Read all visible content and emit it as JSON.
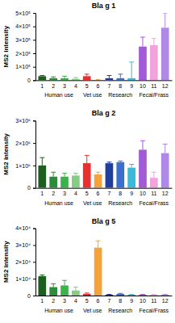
{
  "chart_data": [
    {
      "type": "bar",
      "title": "Bla g 1",
      "y_label": "MS2 intensity",
      "categories": [
        "1",
        "2",
        "3",
        "4",
        "5",
        "6",
        "7",
        "8",
        "9",
        "10",
        "11",
        "12"
      ],
      "category_groups": [
        "Human use",
        "Human use",
        "Human use",
        "Human use",
        "Vet use",
        "Vet use",
        "Research",
        "Research",
        "Research",
        "Fecal/Frass",
        "Fecal/Frass",
        "Fecal/Frass"
      ],
      "values": [
        30000,
        15000,
        15000,
        10000,
        30000,
        2000,
        15000,
        15000,
        15000,
        250000,
        260000,
        390000
      ],
      "errors": [
        5000,
        10000,
        15000,
        10000,
        15000,
        2000,
        20000,
        30000,
        120000,
        70000,
        50000,
        110000
      ],
      "colors": [
        "#1b5e20",
        "#2e8b3a",
        "#3cb34a",
        "#85cc85",
        "#e8302e",
        "#f4a33a",
        "#1f3e9e",
        "#3a6fd0",
        "#3cb9d6",
        "#a35ad6",
        "#f3a3dc",
        "#b088e6"
      ],
      "ylim": [
        0,
        500000
      ],
      "yticks": [
        {
          "value": 0,
          "label": "0"
        },
        {
          "value": 100000,
          "label": "1×10⁵"
        },
        {
          "value": 200000,
          "label": "2×10⁵"
        },
        {
          "value": 300000,
          "label": "3×10⁵"
        },
        {
          "value": 400000,
          "label": "4×10⁵"
        },
        {
          "value": 500000,
          "label": "5×10⁵"
        }
      ]
    },
    {
      "type": "bar",
      "title": "Bla g 2",
      "y_label": "MS2 intensity",
      "categories": [
        "1",
        "2",
        "3",
        "4",
        "5",
        "6",
        "7",
        "8",
        "9",
        "10",
        "11",
        "12"
      ],
      "category_groups": [
        "Human use",
        "Human use",
        "Human use",
        "Human use",
        "Vet use",
        "Vet use",
        "Research",
        "Research",
        "Research",
        "Fecal/Frass",
        "Fecal/Frass",
        "Fecal/Frass"
      ],
      "values": [
        1000000,
        500000,
        500000,
        550000,
        1100000,
        600000,
        1100000,
        1150000,
        900000,
        1700000,
        450000,
        1550000
      ],
      "errors": [
        350000,
        200000,
        150000,
        100000,
        350000,
        100000,
        50000,
        50000,
        150000,
        400000,
        250000,
        400000
      ],
      "colors": [
        "#1b5e20",
        "#2e8b3a",
        "#3cb34a",
        "#85cc85",
        "#e8302e",
        "#f4a33a",
        "#1f3e9e",
        "#3a6fd0",
        "#3cb9d6",
        "#a35ad6",
        "#f3a3dc",
        "#b088e6"
      ],
      "ylim": [
        0,
        3000000
      ],
      "yticks": [
        {
          "value": 0,
          "label": "0"
        },
        {
          "value": 1000000,
          "label": "1×10⁶"
        },
        {
          "value": 2000000,
          "label": "2×10⁶"
        },
        {
          "value": 3000000,
          "label": "3×10⁶"
        }
      ]
    },
    {
      "type": "bar",
      "title": "Bla g 5",
      "y_label": "MS2 intensity",
      "categories": [
        "1",
        "2",
        "3",
        "4",
        "5",
        "6",
        "7",
        "8",
        "9",
        "10",
        "11",
        "12"
      ],
      "category_groups": [
        "Human use",
        "Human use",
        "Human use",
        "Human use",
        "Vet use",
        "Vet use",
        "Research",
        "Research",
        "Research",
        "Fecal/Frass",
        "Fecal/Frass",
        "Fecal/Frass"
      ],
      "values": [
        11500,
        5000,
        6000,
        3000,
        1000,
        28500,
        500,
        1000,
        500,
        500,
        500,
        500
      ],
      "errors": [
        700,
        2000,
        3000,
        2000,
        500,
        4000,
        200,
        300,
        200,
        200,
        200,
        200
      ],
      "colors": [
        "#1b5e20",
        "#2e8b3a",
        "#3cb34a",
        "#85cc85",
        "#e8302e",
        "#f4a33a",
        "#1f3e9e",
        "#3a6fd0",
        "#3cb9d6",
        "#a35ad6",
        "#f3a3dc",
        "#b088e6"
      ],
      "ylim": [
        0,
        40000
      ],
      "yticks": [
        {
          "value": 0,
          "label": "0"
        },
        {
          "value": 10000,
          "label": "1×10⁴"
        },
        {
          "value": 20000,
          "label": "2×10⁴"
        },
        {
          "value": 30000,
          "label": "3×10⁴"
        },
        {
          "value": 40000,
          "label": "4×10⁴"
        }
      ]
    }
  ]
}
